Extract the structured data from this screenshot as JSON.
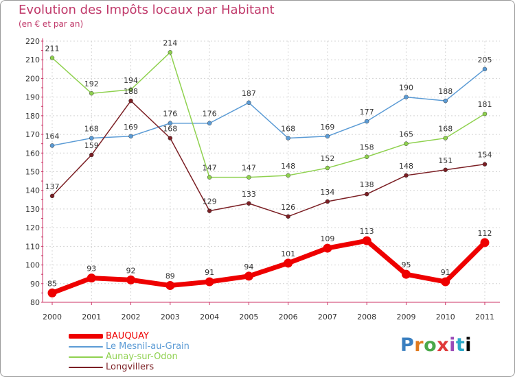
{
  "title": "Evolution des Impôts locaux par Habitant",
  "subtitle": "(en € et par an)",
  "logo": "Proxiti",
  "chart_data": {
    "type": "line",
    "title": "Evolution des Impôts locaux par Habitant",
    "subtitle": "(en € et par an)",
    "xlabel": "",
    "ylabel": "",
    "ylim": [
      80,
      220
    ],
    "yticks": [
      80,
      90,
      100,
      110,
      120,
      130,
      140,
      150,
      160,
      170,
      180,
      190,
      200,
      210,
      220
    ],
    "categories": [
      "2000",
      "2001",
      "2002",
      "2003",
      "2004",
      "2005",
      "2006",
      "2007",
      "2008",
      "2009",
      "2010",
      "2011"
    ],
    "legend_position": "bottom-left",
    "series": [
      {
        "name": "Le Mesnil-au-Grain",
        "color": "#5b9bd5",
        "values": [
          164,
          168,
          169,
          176,
          176,
          187,
          168,
          169,
          177,
          190,
          188,
          205
        ],
        "labels": [
          "164",
          "168",
          "169",
          "176",
          "176",
          "187",
          "168",
          "169",
          "177",
          "190",
          "188",
          "205"
        ]
      },
      {
        "name": "Aunay-sur-Odon",
        "color": "#8fd14f",
        "values": [
          211,
          192,
          194,
          214,
          147,
          147,
          148,
          152,
          158,
          165,
          168,
          181
        ],
        "labels": [
          "211",
          "192",
          "194",
          "214",
          "147",
          "147",
          "148",
          "152",
          "158",
          "165",
          "168",
          "181"
        ]
      },
      {
        "name": "Longvillers",
        "color": "#7b1f24",
        "values": [
          137,
          159,
          188,
          168,
          129,
          133,
          126,
          134,
          138,
          148,
          151,
          154
        ],
        "labels": [
          "137",
          "159",
          "188",
          "168",
          "129",
          "133",
          "126",
          "134",
          "138",
          "148",
          "151",
          "154"
        ]
      },
      {
        "name": "BAUQUAY",
        "color": "#ee0000",
        "values": [
          85,
          93,
          92,
          89,
          91,
          94,
          101,
          109,
          113,
          95,
          91,
          112
        ],
        "labels": [
          "85",
          "93",
          "92",
          "89",
          "91",
          "94",
          "101",
          "109",
          "113",
          "95",
          "91",
          "112"
        ]
      }
    ]
  },
  "legend": [
    {
      "label": "BAUQUAY",
      "color": "#ee0000",
      "thick": true
    },
    {
      "label": "Le Mesnil-au-Grain",
      "color": "#5b9bd5",
      "thick": false
    },
    {
      "label": "Aunay-sur-Odon",
      "color": "#8fd14f",
      "thick": false
    },
    {
      "label": "Longvillers",
      "color": "#7b1f24",
      "thick": false
    }
  ]
}
